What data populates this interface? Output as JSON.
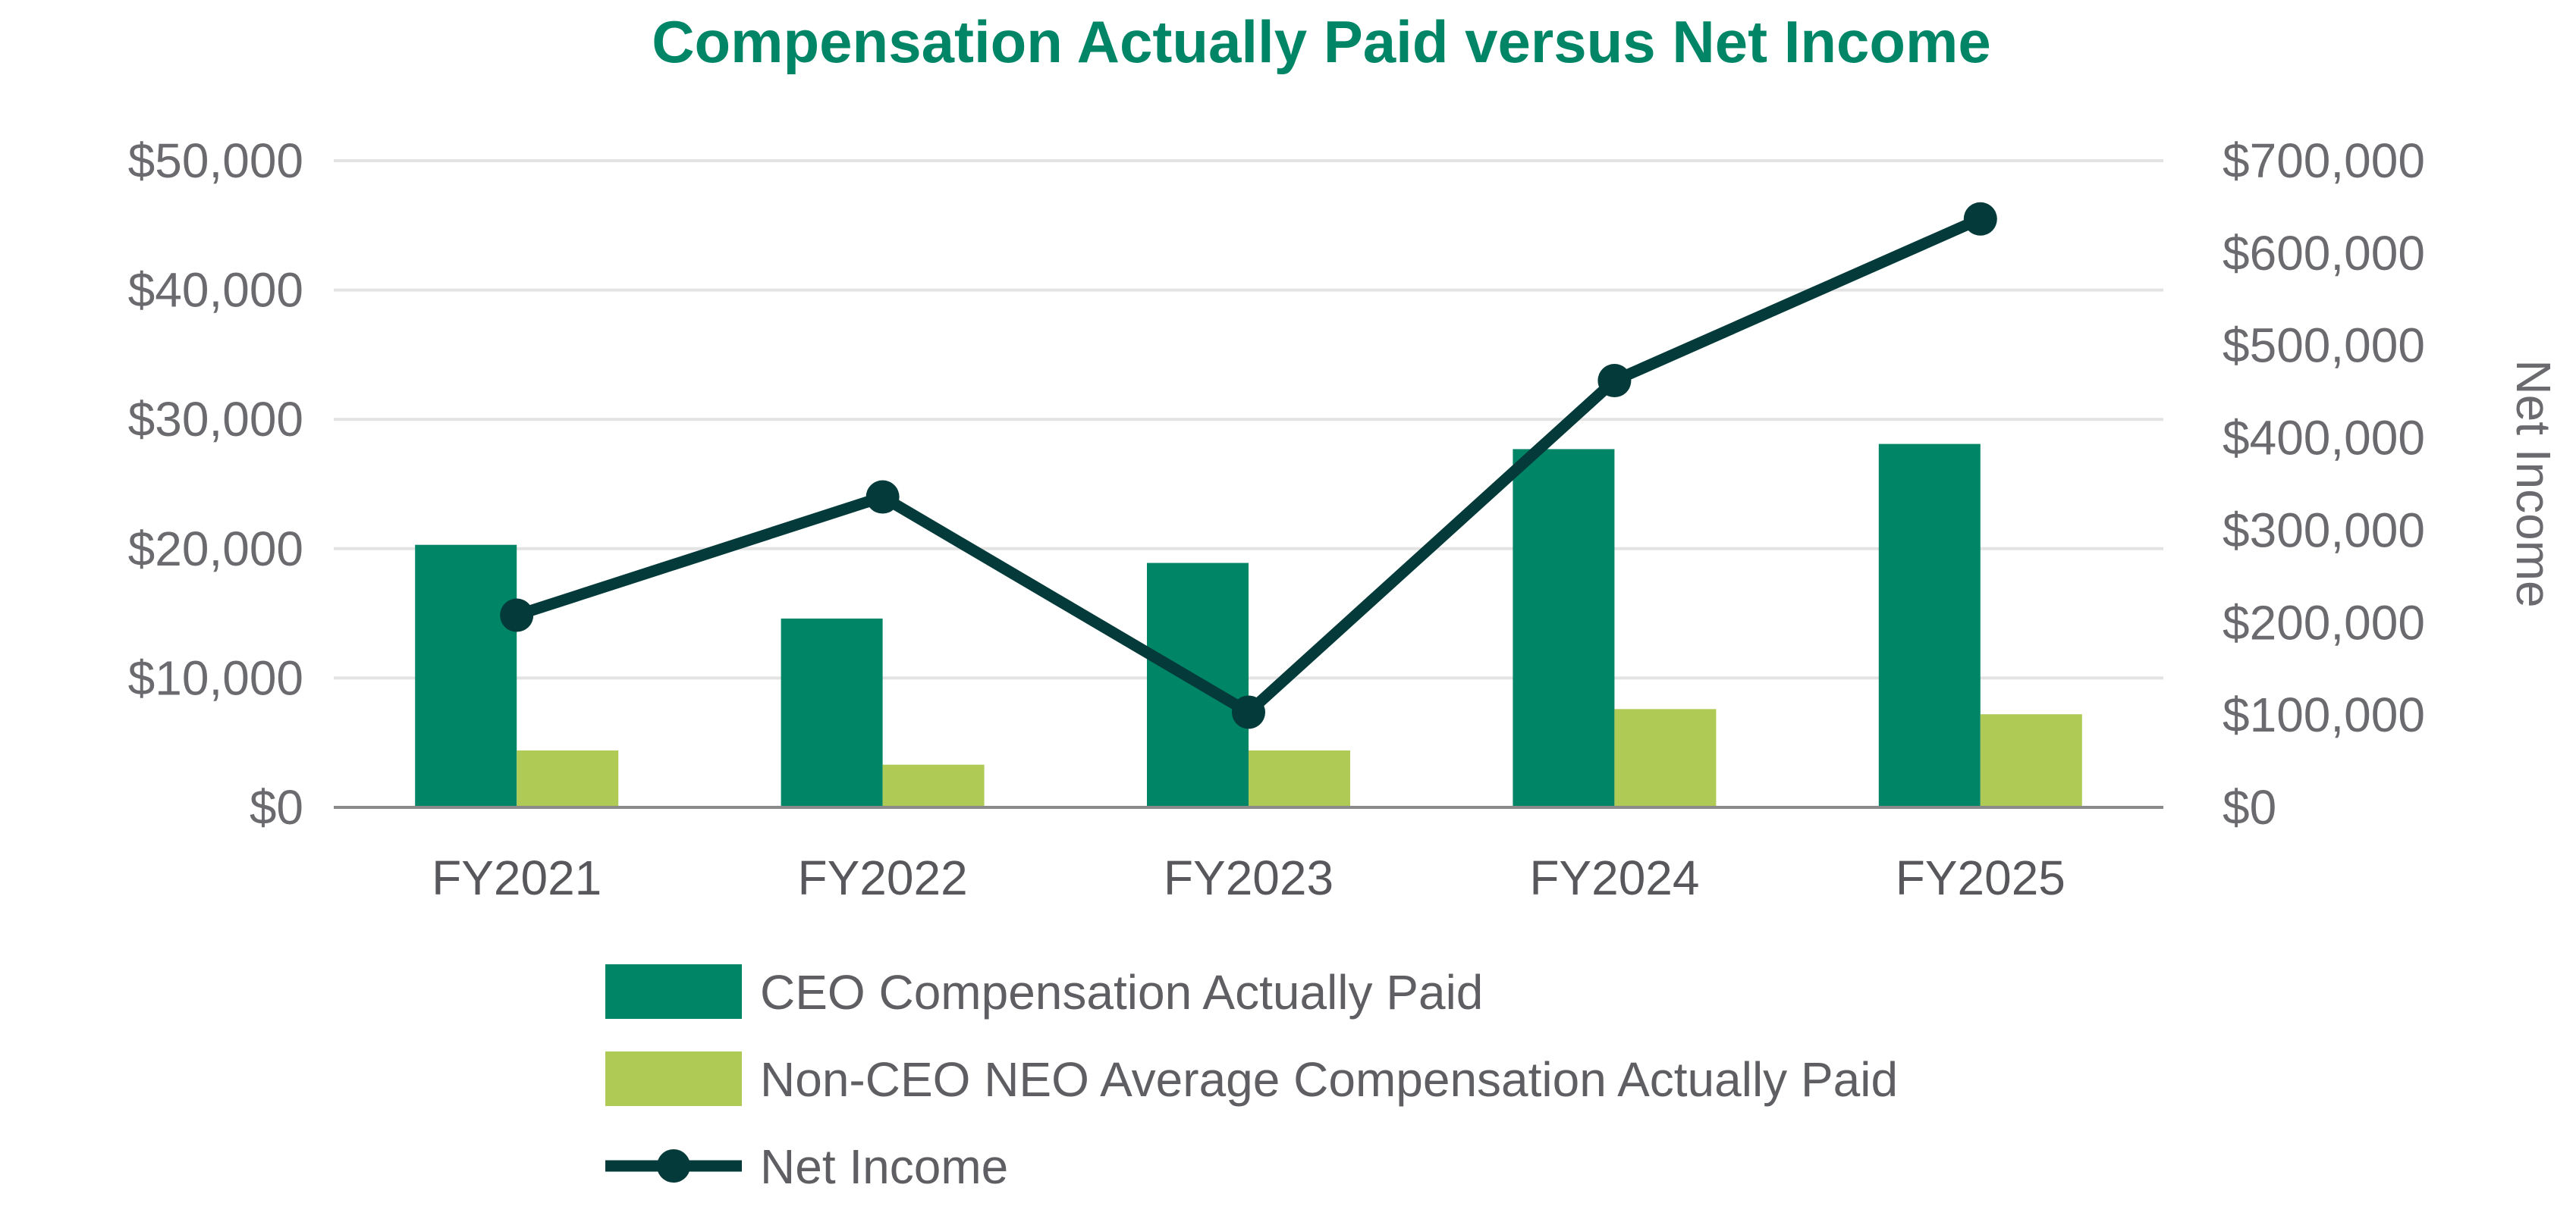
{
  "chart_data": {
    "type": "bar",
    "title": "Compensation Actually Paid versus Net Income",
    "categories": [
      "FY2021",
      "FY2022",
      "FY2023",
      "FY2024",
      "FY2025"
    ],
    "series": [
      {
        "name": "CEO Compensation Actually Paid",
        "kind": "bar",
        "axis": "left",
        "color": "#008566",
        "values": [
          20300,
          14600,
          18900,
          27700,
          28100
        ]
      },
      {
        "name": "Non-CEO NEO Average Compensation Actually Paid",
        "kind": "bar",
        "axis": "left",
        "color": "#afcb56",
        "values": [
          4400,
          3300,
          4400,
          7600,
          7200
        ]
      },
      {
        "name": "Net Income",
        "kind": "line",
        "axis": "right",
        "color": "#043a3a",
        "values": [
          208000,
          336000,
          103000,
          462000,
          637000
        ]
      }
    ],
    "y_left": {
      "label": "",
      "min": 0,
      "max": 50000,
      "ticks": [
        0,
        10000,
        20000,
        30000,
        40000,
        50000
      ],
      "tick_labels": [
        "$0",
        "$10,000",
        "$20,000",
        "$30,000",
        "$40,000",
        "$50,000"
      ]
    },
    "y_right": {
      "label": "Net Income",
      "min": 0,
      "max": 700000,
      "ticks": [
        0,
        100000,
        200000,
        300000,
        400000,
        500000,
        600000,
        700000
      ],
      "tick_labels": [
        "$0",
        "$100,000",
        "$200,000",
        "$300,000",
        "$400,000",
        "$500,000",
        "$600,000",
        "$700,000"
      ]
    },
    "grid": true,
    "legend_position": "bottom",
    "colors": {
      "title": "#008566",
      "grid": "#e3e3e3",
      "axis": "#8a8a8a"
    }
  }
}
